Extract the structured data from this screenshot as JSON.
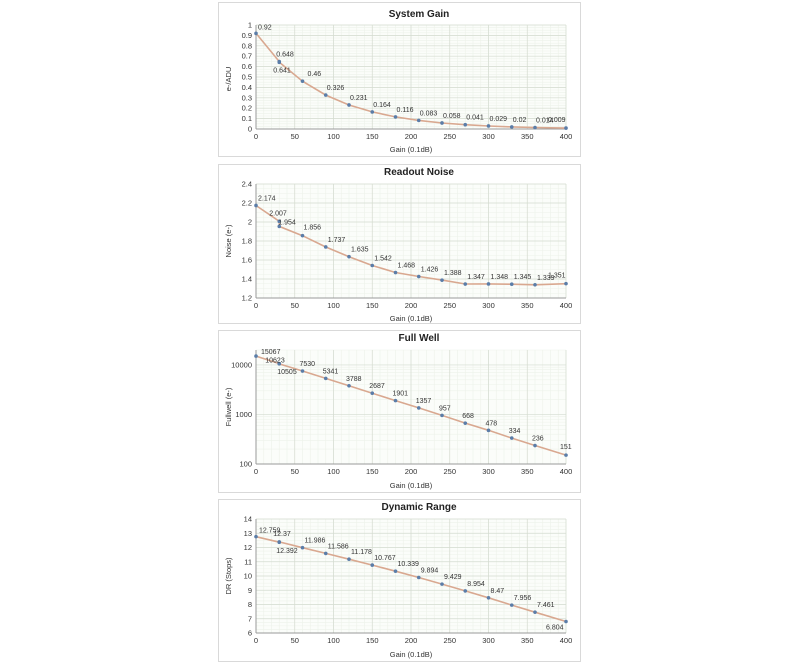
{
  "chart_data": [
    {
      "type": "line",
      "title": "System Gain",
      "xlabel": "Gain (0.1dB)",
      "ylabel": "e-/ADU",
      "xlim": [
        0,
        400
      ],
      "ylim": [
        0,
        1
      ],
      "xticks": [
        0,
        50,
        100,
        150,
        200,
        250,
        300,
        350,
        400
      ],
      "yticks": [
        0,
        0.1,
        0.2,
        0.3,
        0.4,
        0.5,
        0.6,
        0.7,
        0.8,
        0.9,
        1
      ],
      "ytick_labels": [
        "0",
        "0.1",
        "0.2",
        "0.3",
        "0.4",
        "0.5",
        "0.6",
        "0.7",
        "0.8",
        "0.9",
        "1"
      ],
      "log_y": false,
      "grid": true,
      "series": [
        {
          "x": [
            0,
            30,
            30,
            60,
            90,
            120,
            150,
            180,
            210,
            240,
            270,
            300,
            330,
            360,
            400
          ],
          "values": [
            0.92,
            0.648,
            0.641,
            0.46,
            0.326,
            0.231,
            0.164,
            0.116,
            0.083,
            0.058,
            0.041,
            0.029,
            0.02,
            0.014,
            0.009
          ],
          "labels": [
            "0.92",
            "0.648",
            "0.641",
            "0.46",
            "0.326",
            "0.231",
            "0.164",
            "0.116",
            "0.083",
            "0.058",
            "0.041",
            "0.029",
            "0.02",
            "0.014",
            "0.009"
          ]
        }
      ]
    },
    {
      "type": "line",
      "title": "Readout Noise",
      "xlabel": "Gain (0.1dB)",
      "ylabel": "Noise (e-)",
      "xlim": [
        0,
        400
      ],
      "ylim": [
        1.2,
        2.4
      ],
      "xticks": [
        0,
        50,
        100,
        150,
        200,
        250,
        300,
        350,
        400
      ],
      "yticks": [
        1.2,
        1.4,
        1.6,
        1.8,
        2,
        2.2,
        2.4
      ],
      "ytick_labels": [
        "1.2",
        "1.4",
        "1.6",
        "1.8",
        "2",
        "2.2",
        "2.4"
      ],
      "log_y": false,
      "grid": true,
      "series": [
        {
          "x": [
            0,
            30,
            30,
            60,
            90,
            120,
            150,
            180,
            210,
            240,
            270,
            300,
            330,
            360,
            400
          ],
          "values": [
            2.174,
            2.007,
            1.954,
            1.856,
            1.737,
            1.635,
            1.542,
            1.468,
            1.426,
            1.388,
            1.347,
            1.348,
            1.345,
            1.339,
            1.351
          ],
          "labels": [
            "2.174",
            "2.007",
            "1.954",
            "1.856",
            "1.737",
            "1.635",
            "1.542",
            "1.468",
            "1.426",
            "1.388",
            "1.347",
            "1.348",
            "1.345",
            "1.339",
            "1.351"
          ]
        }
      ]
    },
    {
      "type": "line",
      "title": "Full Well",
      "xlabel": "Gain (0.1dB)",
      "ylabel": "Fullwell (e-)",
      "xlim": [
        0,
        400
      ],
      "ylim": [
        100,
        20000
      ],
      "xticks": [
        0,
        50,
        100,
        150,
        200,
        250,
        300,
        350,
        400
      ],
      "yticks": [
        100,
        1000,
        10000
      ],
      "ytick_labels": [
        "100",
        "1000",
        "10000"
      ],
      "log_y": true,
      "grid": true,
      "series": [
        {
          "x": [
            0,
            30,
            30,
            60,
            90,
            120,
            150,
            180,
            210,
            240,
            270,
            300,
            330,
            360,
            400
          ],
          "values": [
            15067,
            10623,
            10505,
            7530,
            5341,
            3788,
            2687,
            1901,
            1357,
            957,
            668,
            478,
            334,
            236,
            151
          ],
          "labels": [
            "15067",
            "10623",
            "10505",
            "7530",
            "5341",
            "3788",
            "2687",
            "1901",
            "1357",
            "957",
            "668",
            "478",
            "334",
            "236",
            "151"
          ]
        }
      ]
    },
    {
      "type": "line",
      "title": "Dynamic Range",
      "xlabel": "Gain (0.1dB)",
      "ylabel": "DR (Stops)",
      "xlim": [
        0,
        400
      ],
      "ylim": [
        6,
        14
      ],
      "xticks": [
        0,
        50,
        100,
        150,
        200,
        250,
        300,
        350,
        400
      ],
      "yticks": [
        6,
        7,
        8,
        9,
        10,
        11,
        12,
        13,
        14
      ],
      "ytick_labels": [
        "6",
        "7",
        "8",
        "9",
        "10",
        "11",
        "12",
        "13",
        "14"
      ],
      "log_y": false,
      "grid": true,
      "series": [
        {
          "x": [
            0,
            30,
            30,
            60,
            90,
            120,
            150,
            180,
            210,
            240,
            270,
            300,
            330,
            360,
            400
          ],
          "values": [
            12.759,
            12.37,
            12.392,
            11.986,
            11.586,
            11.178,
            10.767,
            10.339,
            9.894,
            9.429,
            8.954,
            8.47,
            7.956,
            7.461,
            6.804
          ],
          "labels": [
            "12.759",
            "12.37",
            "12.392",
            "11.986",
            "11.586",
            "11.178",
            "10.767",
            "10.339",
            "9.894",
            "9.429",
            "8.954",
            "8.47",
            "7.956",
            "7.461",
            "6.804"
          ]
        }
      ]
    }
  ],
  "colors": {
    "line": "#d9a890",
    "marker": "#5b7da8",
    "grid_minor": "#edf2ea",
    "grid_major": "#d4dcd0",
    "axis": "#9a9a9a"
  }
}
